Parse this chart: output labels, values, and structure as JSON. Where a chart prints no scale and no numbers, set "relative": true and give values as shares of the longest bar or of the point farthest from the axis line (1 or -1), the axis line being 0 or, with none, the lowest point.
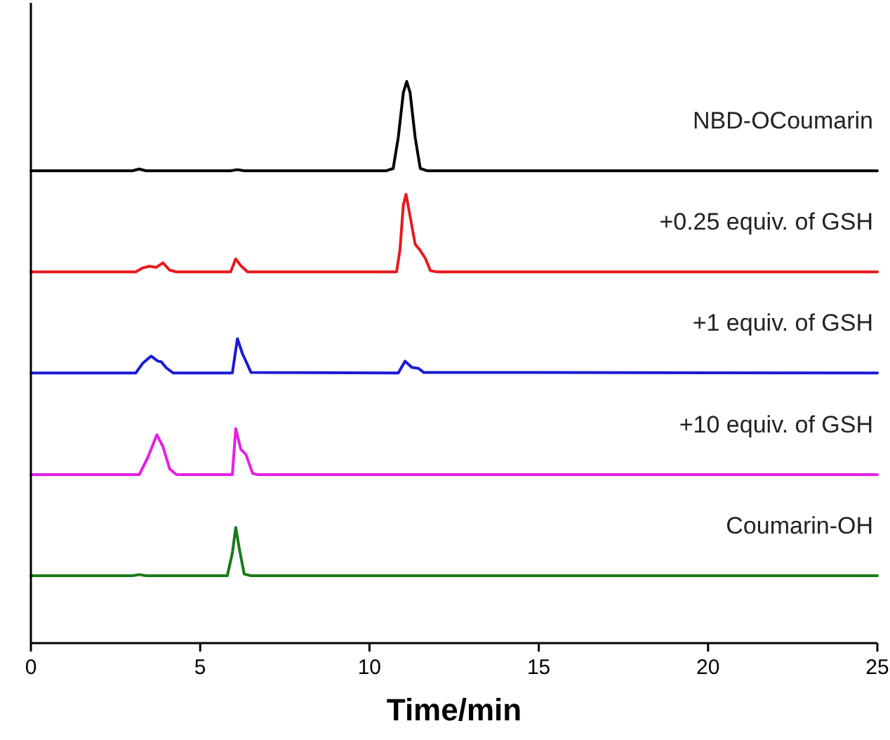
{
  "chart_data": {
    "type": "line",
    "xlabel": "Time/min",
    "relative": true,
    "xlim": [
      0,
      25
    ],
    "xticks": [
      0,
      5,
      10,
      15,
      20,
      25
    ],
    "tick_labels": "x",
    "grid": false,
    "legend": false,
    "marker": "none",
    "line_style": "solid",
    "series": [
      {
        "name": "NBD-OCoumarin",
        "color": "#000000",
        "x": [
          0,
          3.0,
          3.2,
          3.4,
          5.9,
          6.1,
          6.3,
          10.5,
          10.7,
          10.85,
          11.0,
          11.1,
          11.2,
          11.35,
          11.5,
          11.7,
          25
        ],
        "values": [
          0.841,
          0.841,
          0.844,
          0.841,
          0.841,
          0.843,
          0.841,
          0.841,
          0.845,
          0.9,
          0.98,
          1.0,
          0.98,
          0.9,
          0.845,
          0.841,
          0.841
        ]
      },
      {
        "name": "+0.25 equiv. of GSH",
        "color": "#e8191c",
        "x": [
          0,
          3.1,
          3.3,
          3.5,
          3.7,
          3.9,
          4.1,
          4.3,
          5.9,
          6.05,
          6.2,
          6.4,
          10.8,
          10.9,
          11.0,
          11.08,
          11.2,
          11.35,
          11.5,
          11.65,
          11.8,
          12.0,
          25
        ],
        "values": [
          0.661,
          0.661,
          0.668,
          0.671,
          0.669,
          0.677,
          0.664,
          0.661,
          0.661,
          0.684,
          0.672,
          0.661,
          0.661,
          0.7,
          0.78,
          0.799,
          0.76,
          0.71,
          0.699,
          0.685,
          0.663,
          0.661,
          0.661
        ]
      },
      {
        "name": "+1 equiv. of GSH",
        "color": "#1a1ad6",
        "x": [
          0,
          3.1,
          3.3,
          3.55,
          3.75,
          3.85,
          4.0,
          4.2,
          5.95,
          6.1,
          6.25,
          6.35,
          6.5,
          10.85,
          11.05,
          11.25,
          11.45,
          11.6,
          25
        ],
        "values": [
          0.481,
          0.481,
          0.498,
          0.511,
          0.502,
          0.501,
          0.49,
          0.481,
          0.481,
          0.542,
          0.515,
          0.502,
          0.482,
          0.481,
          0.502,
          0.491,
          0.489,
          0.482,
          0.481
        ]
      },
      {
        "name": "+10 equiv. of GSH",
        "color": "#e61ee6",
        "x": [
          0,
          3.2,
          3.45,
          3.72,
          3.9,
          4.1,
          4.3,
          5.95,
          6.05,
          6.2,
          6.35,
          6.55,
          6.7,
          25
        ],
        "values": [
          0.3,
          0.3,
          0.33,
          0.371,
          0.35,
          0.31,
          0.3,
          0.3,
          0.382,
          0.345,
          0.336,
          0.302,
          0.3,
          0.3
        ]
      },
      {
        "name": "Coumarin-OH",
        "color": "#1a7a1a",
        "x": [
          0,
          3.0,
          3.2,
          3.4,
          5.8,
          5.95,
          6.05,
          6.15,
          6.3,
          6.5,
          25
        ],
        "values": [
          0.12,
          0.12,
          0.122,
          0.12,
          0.12,
          0.16,
          0.206,
          0.17,
          0.123,
          0.12,
          0.12
        ]
      }
    ]
  }
}
